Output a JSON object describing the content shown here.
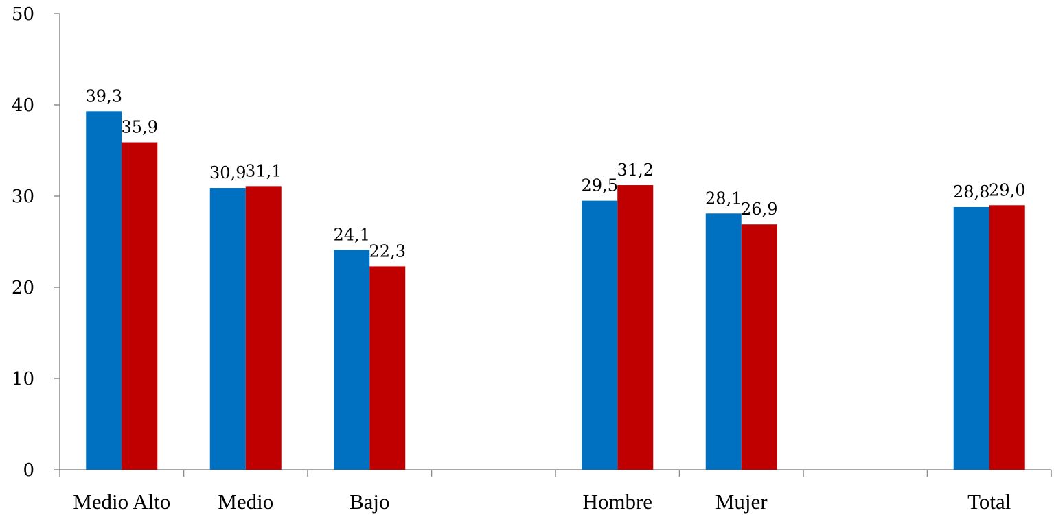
{
  "chart_data": {
    "type": "bar",
    "title": "",
    "xlabel": "",
    "ylabel": "",
    "ylim": [
      0,
      50
    ],
    "yticks": [
      0,
      10,
      20,
      30,
      40,
      50
    ],
    "grid": false,
    "legend": "none",
    "categories": [
      "Medio Alto",
      "Medio",
      "Bajo",
      "",
      "Hombre",
      "Mujer",
      "",
      "Total"
    ],
    "series": [
      {
        "color": "#0070C0",
        "values": [
          39.3,
          30.9,
          24.1,
          null,
          29.5,
          28.1,
          null,
          28.8
        ],
        "labels": [
          "39,3",
          "30,9",
          "24,1",
          "",
          "29,5",
          "28,1",
          "",
          "28,8"
        ]
      },
      {
        "color": "#C00000",
        "values": [
          35.9,
          31.1,
          22.3,
          null,
          31.2,
          26.9,
          null,
          29.0
        ],
        "labels": [
          "35,9",
          "31,1",
          "22,3",
          "",
          "31,2",
          "26,9",
          "",
          "29,0"
        ]
      }
    ]
  }
}
